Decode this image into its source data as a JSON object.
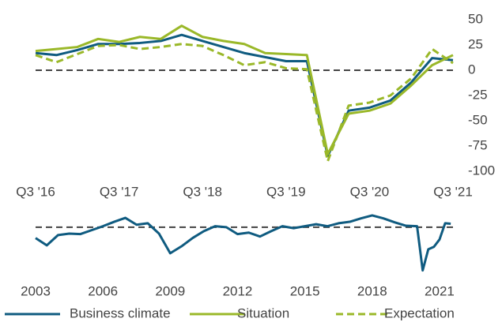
{
  "chart_data": [
    {
      "type": "line",
      "categories": [
        "Q3 '16",
        null,
        null,
        null,
        "Q3 '17",
        null,
        null,
        null,
        "Q3 '18",
        null,
        null,
        null,
        "Q3 '19",
        null,
        null,
        null,
        "Q3 '20",
        null,
        null,
        null,
        "Q3 '21"
      ],
      "series": [
        {
          "name": "Business climate",
          "color": "#0f5b80",
          "dash": false,
          "values": [
            17,
            15,
            20,
            26,
            26,
            27,
            29,
            35,
            29,
            23,
            17,
            13,
            9,
            9,
            -85,
            -40,
            -37,
            -30,
            -12,
            12,
            10
          ]
        },
        {
          "name": "Situation",
          "color": "#9ab829",
          "dash": false,
          "values": [
            19,
            21,
            23,
            31,
            28,
            33,
            31,
            44,
            33,
            29,
            26,
            17,
            16,
            15,
            -83,
            -43,
            -40,
            -33,
            -15,
            5,
            15
          ]
        },
        {
          "name": "Expectation",
          "color": "#9ab829",
          "dash": true,
          "values": [
            15,
            8,
            16,
            24,
            25,
            21,
            23,
            26,
            24,
            15,
            5,
            8,
            2,
            1,
            -90,
            -35,
            -32,
            -25,
            -8,
            21,
            7
          ]
        }
      ],
      "ylim": [
        -100,
        50
      ],
      "yticks": [
        -100,
        -75,
        -50,
        -25,
        0,
        25,
        50
      ],
      "hline": 0,
      "legend": "bottom"
    },
    {
      "type": "line",
      "x": [
        2003,
        2003.5,
        2004,
        2004.5,
        2005,
        2005.5,
        2006,
        2006.5,
        2007,
        2007.5,
        2008,
        2008.5,
        2009,
        2009.5,
        2010,
        2010.5,
        2011,
        2011.5,
        2012,
        2012.5,
        2013,
        2013.5,
        2014,
        2014.5,
        2015,
        2015.5,
        2016,
        2016.5,
        2017,
        2017.5,
        2018,
        2018.5,
        2019,
        2019.5,
        2020,
        2020.25,
        2020.5,
        2020.75,
        2021,
        2021.25,
        2021.5
      ],
      "series": [
        {
          "color": "#0f5b80",
          "values": [
            -22,
            -37,
            -16,
            -13,
            -14,
            -6,
            2,
            11,
            19,
            5,
            8,
            -13,
            -53,
            -39,
            -22,
            -8,
            2,
            0,
            -14,
            -11,
            -19,
            -8,
            2,
            -2,
            2,
            6,
            2,
            8,
            11,
            18,
            24,
            18,
            10,
            3,
            2,
            -88,
            -45,
            -40,
            -25,
            8,
            7
          ]
        }
      ],
      "xlim": [
        2003,
        2021.6
      ],
      "xticks": [
        2003,
        2006,
        2009,
        2012,
        2015,
        2018,
        2021
      ],
      "ylim": [
        -95,
        40
      ],
      "hline": 0
    }
  ]
}
